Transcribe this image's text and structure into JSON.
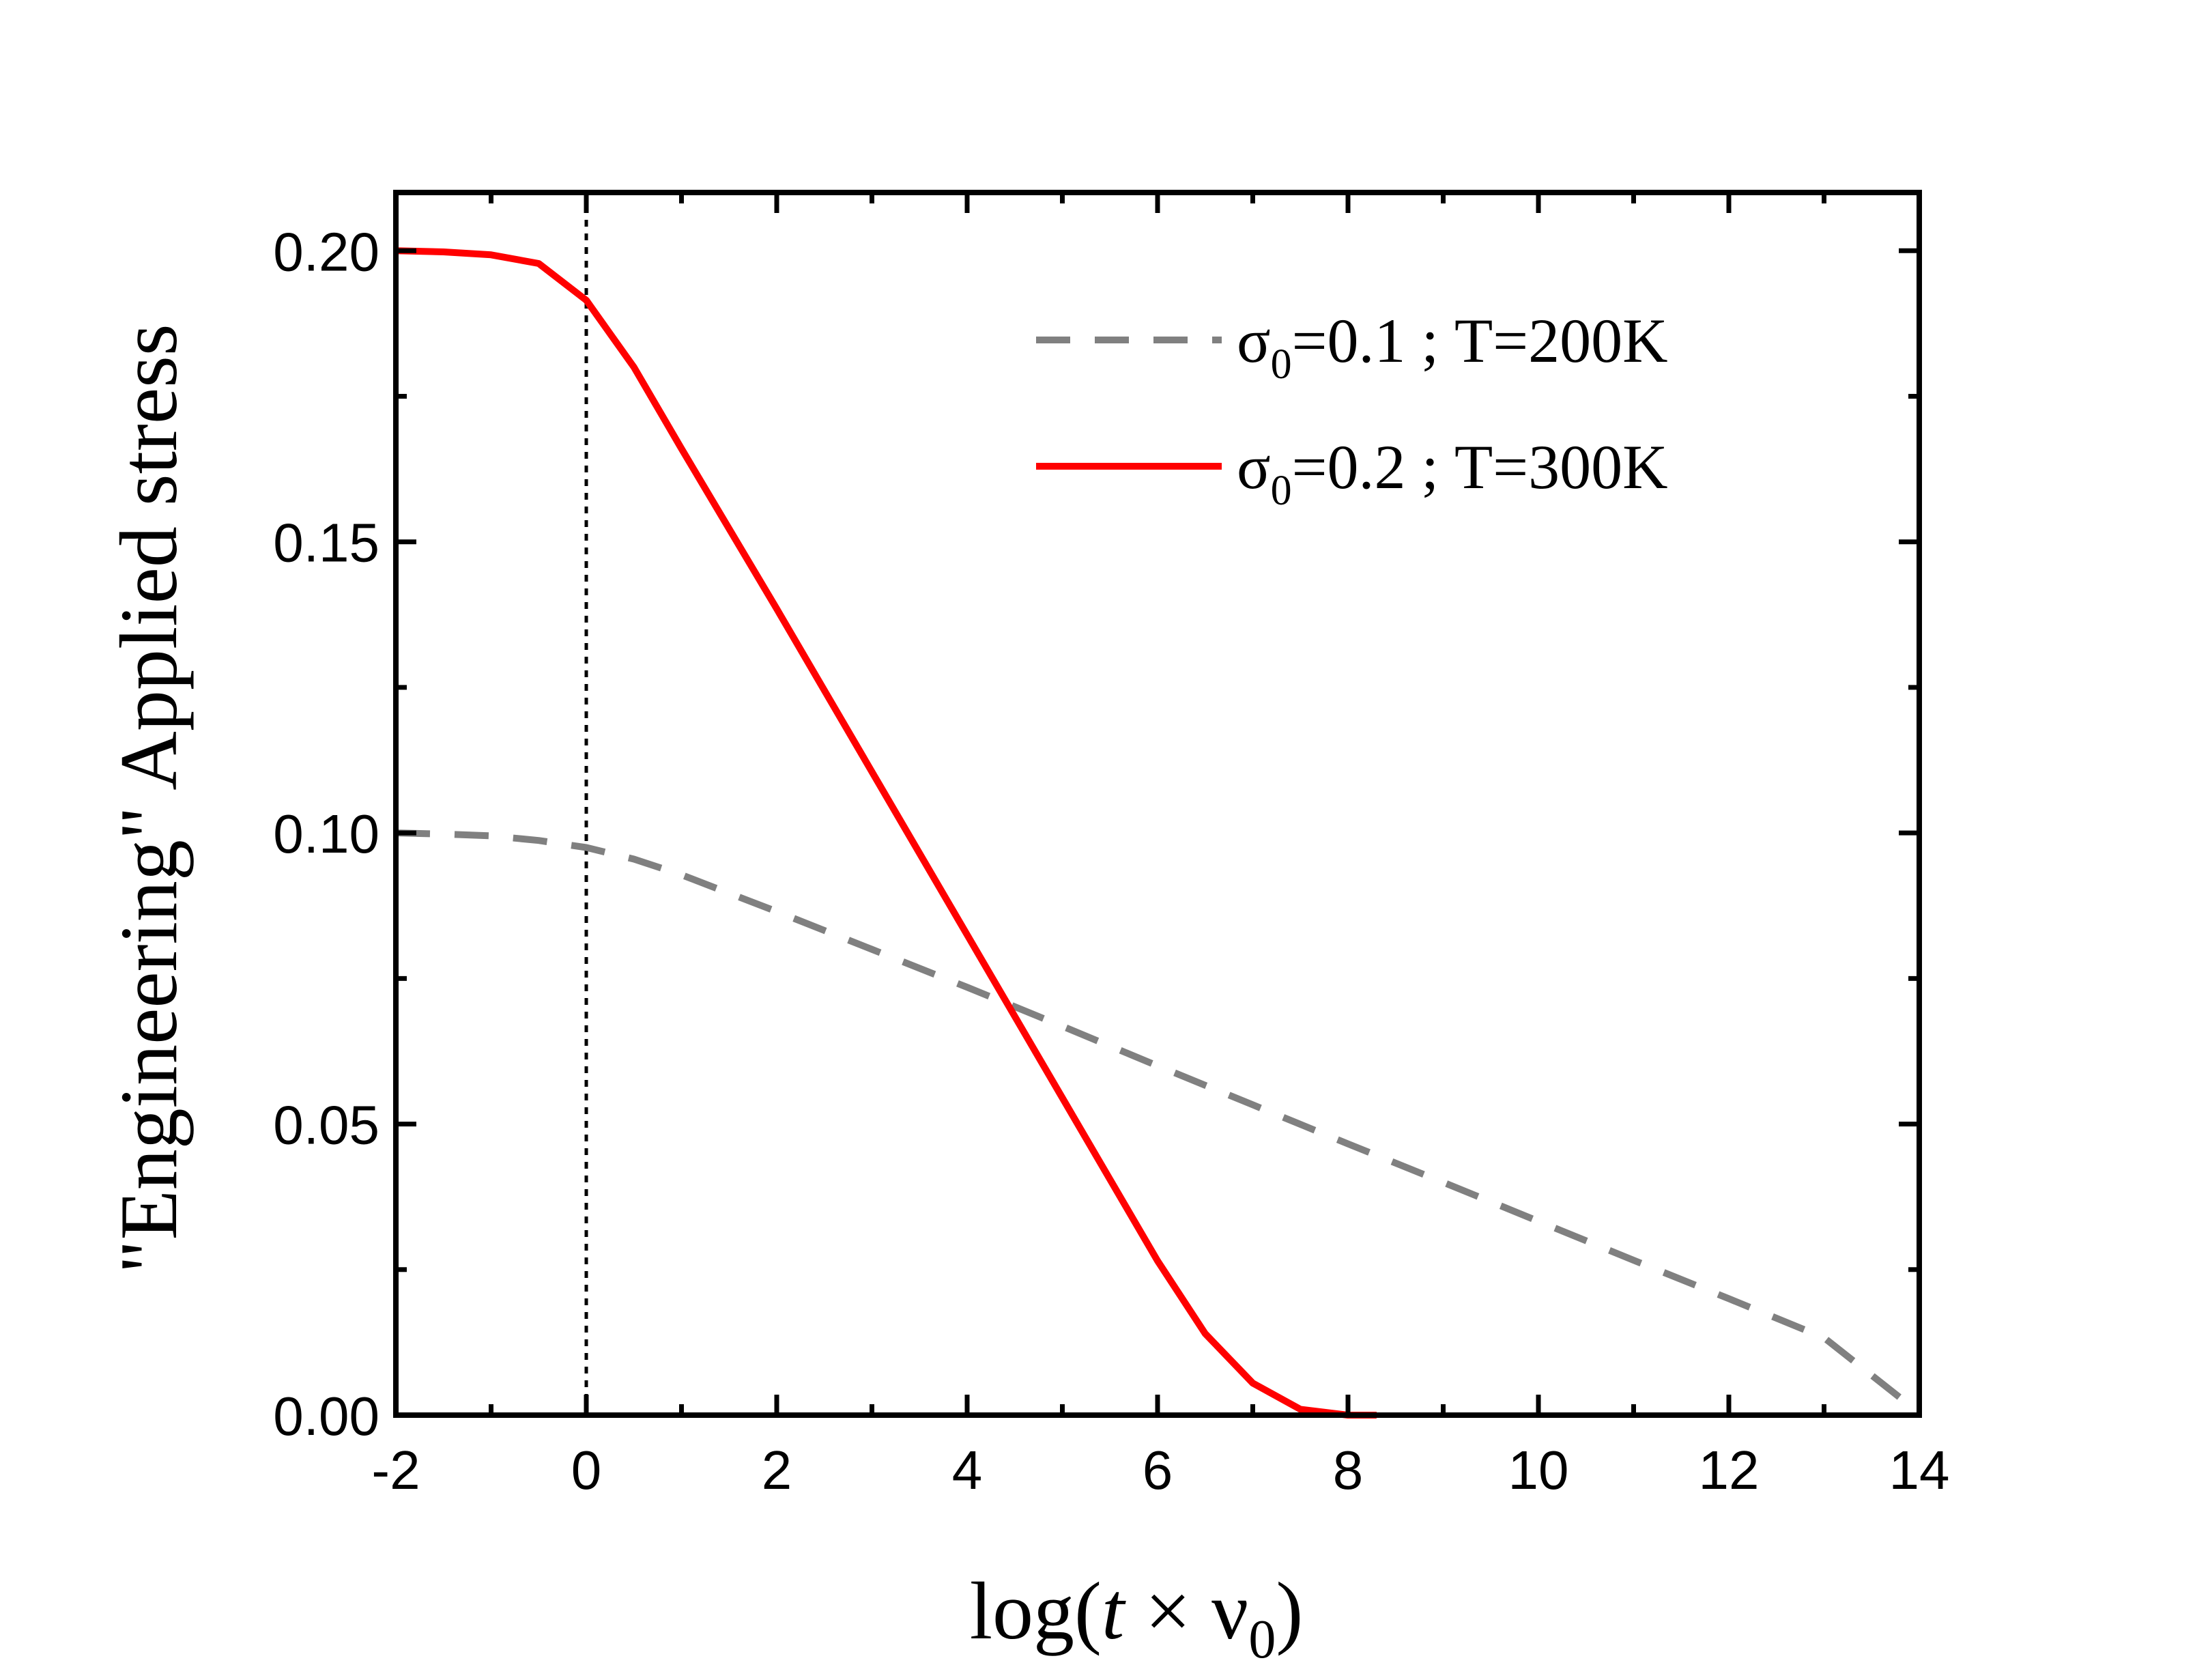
{
  "chart_data": {
    "type": "line",
    "xlabel": {
      "prefix": "log(",
      "t": "t",
      "times": " × ",
      "nu": "ν",
      "sub": "0",
      "suffix": ")"
    },
    "ylabel": "\"Engineering\" Applied stress",
    "xlim": [
      -2,
      14
    ],
    "ylim": [
      0,
      0.21
    ],
    "x_ticks": [
      -2,
      0,
      2,
      4,
      6,
      8,
      10,
      12,
      14
    ],
    "x_tick_labels": [
      "-2",
      "0",
      "2",
      "4",
      "6",
      "8",
      "10",
      "12",
      "14"
    ],
    "y_ticks": [
      0.0,
      0.05,
      0.1,
      0.15,
      0.2
    ],
    "y_tick_labels": [
      "0.00",
      "0.05",
      "0.10",
      "0.15",
      "0.20"
    ],
    "reference_line": {
      "x": 0,
      "style": "dotted",
      "color": "#000000"
    },
    "legend_position": "top-right",
    "series": [
      {
        "name": "σ0=0.1 ; T=200K",
        "legend": {
          "sigma": "σ",
          "sub": "0",
          "rest": "=0.1 ; T=200K"
        },
        "color": "#808080",
        "style": "dashed",
        "x": [
          -2,
          -1.5,
          -1,
          -0.5,
          0,
          0.5,
          1,
          2,
          3,
          4,
          5,
          6,
          7,
          8,
          9,
          10,
          11,
          12,
          13,
          14
        ],
        "y": [
          0.1,
          0.0998,
          0.0995,
          0.0987,
          0.0975,
          0.0955,
          0.0928,
          0.0865,
          0.08,
          0.0735,
          0.0668,
          0.06,
          0.0533,
          0.0466,
          0.04,
          0.0333,
          0.0266,
          0.02,
          0.0133,
          0.0004
        ]
      },
      {
        "name": "σ0=0.2 ; T=300K",
        "legend": {
          "sigma": "σ",
          "sub": "0",
          "rest": "=0.2 ; T=300K"
        },
        "color": "#ff0000",
        "style": "solid",
        "x": [
          -2,
          -1.5,
          -1,
          -0.5,
          0,
          0.5,
          1,
          2,
          3,
          4,
          5,
          6,
          6.5,
          7,
          7.5,
          8,
          8.3
        ],
        "y": [
          0.2,
          0.1998,
          0.1993,
          0.1978,
          0.1915,
          0.18,
          0.166,
          0.1385,
          0.1105,
          0.0825,
          0.0545,
          0.0265,
          0.014,
          0.0055,
          0.001,
          0.0,
          0.0
        ]
      }
    ]
  }
}
